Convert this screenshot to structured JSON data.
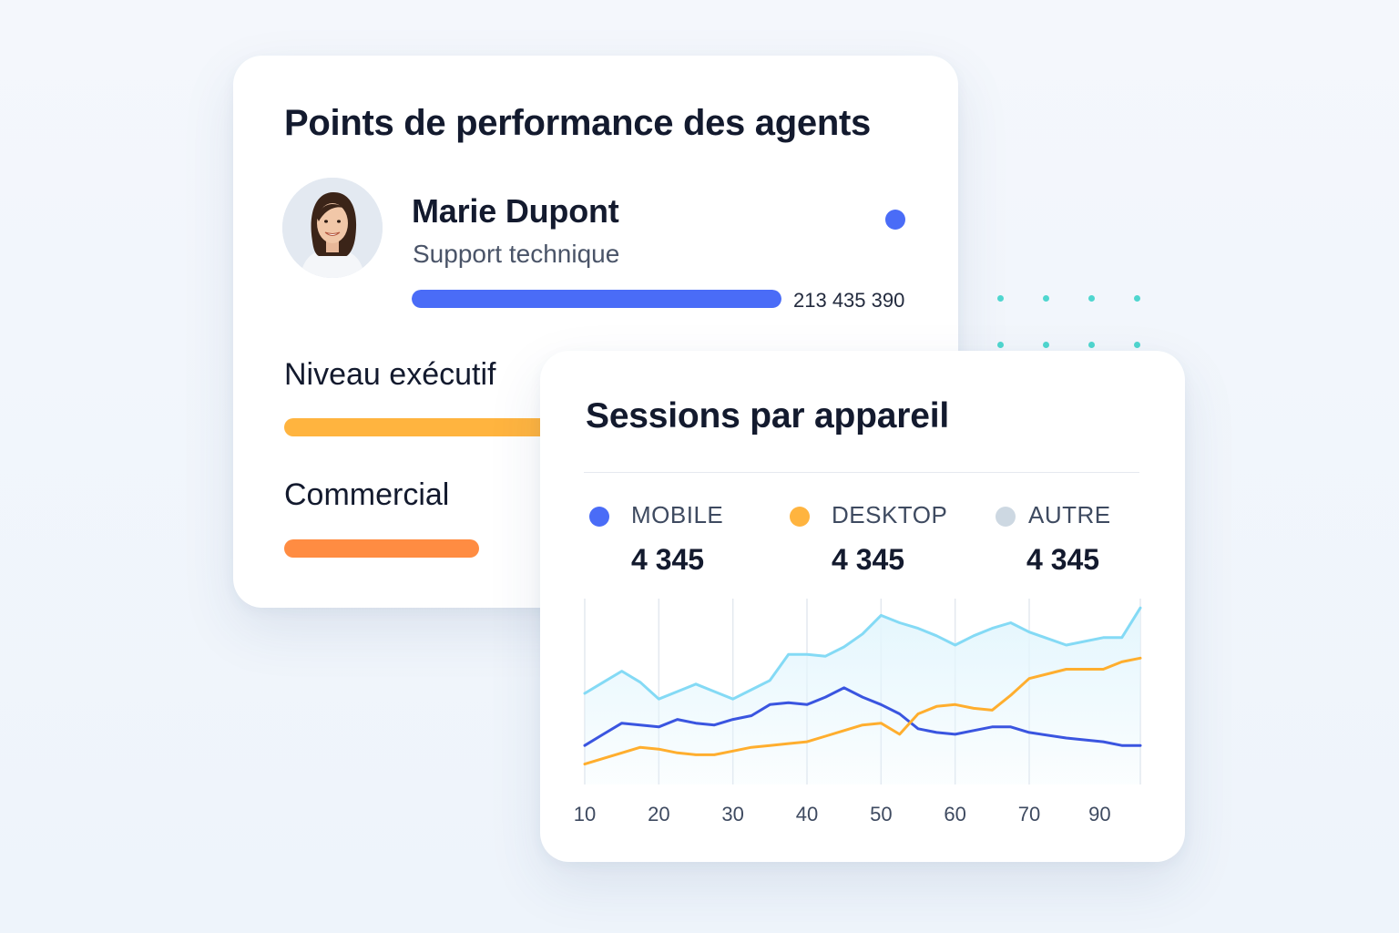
{
  "agents_card": {
    "title": "Points de performance des agents",
    "agent": {
      "name": "Marie Dupont",
      "role": "Support technique",
      "score": "213 435 390",
      "progress_percent": 100,
      "status_color": "#4a6cf7"
    },
    "levels": [
      {
        "label": "Niveau exécutif",
        "color": "#ffb43f"
      },
      {
        "label": "Commercial",
        "color": "#ff8c42"
      }
    ]
  },
  "sessions_card": {
    "title": "Sessions par appareil",
    "legend": [
      {
        "label": "MOBILE",
        "value": "4 345",
        "color": "#4a6cf7"
      },
      {
        "label": "DESKTOP",
        "value": "4 345",
        "color": "#ffb43f"
      },
      {
        "label": "AUTRE",
        "value": "4 345",
        "color": "#cdd8e2"
      }
    ]
  },
  "chart_data": {
    "type": "area",
    "title": "Sessions par appareil",
    "xlabel": "",
    "ylabel": "",
    "x_ticks": [
      "10",
      "20",
      "30",
      "40",
      "50",
      "60",
      "70",
      "90"
    ],
    "x": [
      0,
      0.25,
      0.5,
      0.75,
      1,
      1.25,
      1.5,
      1.75,
      2,
      2.25,
      2.5,
      2.75,
      3,
      3.25,
      3.5,
      3.75,
      4,
      4.25,
      4.5,
      4.75,
      5,
      5.25,
      5.5,
      5.75,
      6,
      6.5,
      7,
      7.25,
      7.5
    ],
    "ylim": [
      0,
      100
    ],
    "grid": true,
    "series": [
      {
        "color": "#84daf5",
        "fill": "#e4f6fd",
        "values": [
          49,
          55,
          61,
          55,
          46,
          50,
          54,
          50,
          46,
          51,
          56,
          70,
          70,
          69,
          74,
          81,
          91,
          87,
          84,
          80,
          75,
          80,
          84,
          87,
          82,
          75,
          79,
          79,
          95
        ]
      },
      {
        "color": "#3a55e0",
        "values": [
          21,
          27,
          33,
          32,
          31,
          35,
          33,
          32,
          35,
          37,
          43,
          44,
          43,
          47,
          52,
          47,
          43,
          38,
          30,
          28,
          27,
          29,
          31,
          31,
          28,
          25,
          23,
          21,
          21
        ]
      },
      {
        "color": "#ffae2e",
        "values": [
          11,
          14,
          17,
          20,
          19,
          17,
          16,
          16,
          18,
          20,
          21,
          22,
          23,
          26,
          29,
          32,
          33,
          27,
          38,
          42,
          43,
          41,
          40,
          48,
          57,
          62,
          62,
          66,
          68
        ]
      }
    ]
  }
}
